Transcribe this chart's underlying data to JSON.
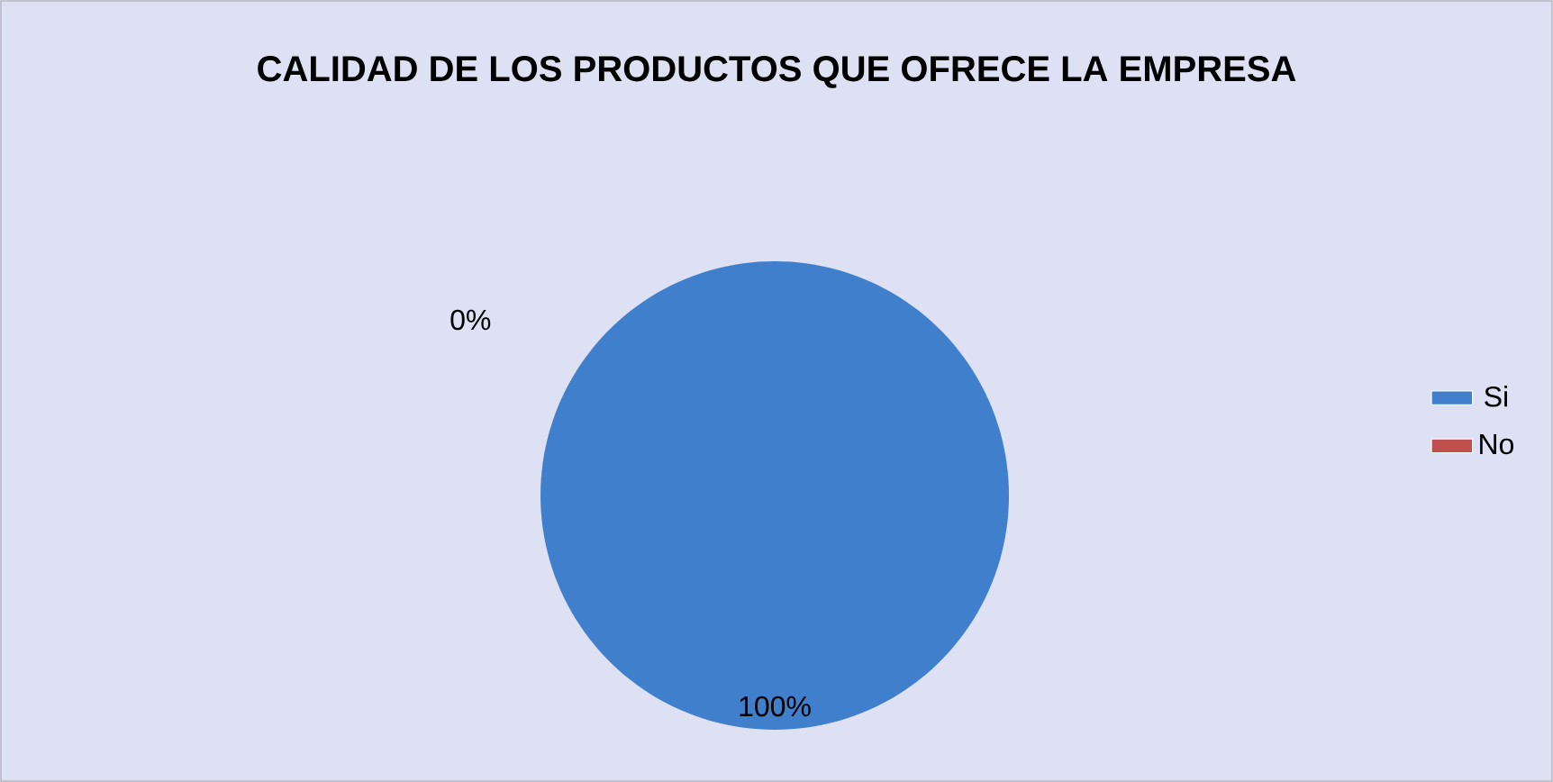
{
  "chart_data": {
    "type": "pie",
    "title": "CALIDAD DE LOS PRODUCTOS QUE OFRECE LA EMPRESA",
    "categories": [
      "Si",
      "No"
    ],
    "values": [
      100,
      0
    ],
    "value_labels": [
      "100%",
      "0%"
    ],
    "colors": [
      "#3f7fcb",
      "#c0504d"
    ],
    "legend": "right"
  }
}
